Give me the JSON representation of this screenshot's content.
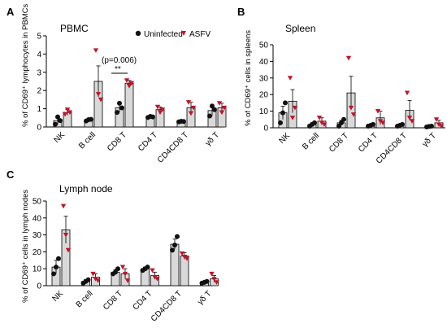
{
  "colors": {
    "uninfected": "#111111",
    "asfv": "#c0142a",
    "bar_fill": "#d9d9d9",
    "axis": "#000000"
  },
  "legend": {
    "uninfected_label": "Uninfected",
    "asfv_label": "ASFV",
    "placement": "top-right of panel A"
  },
  "chart_data": [
    {
      "panel": "A",
      "type": "bar",
      "title": "PBMC",
      "ylabel": "% of CD69⁺ lymphocytes in PBMCs",
      "xlabel": "",
      "ylim": [
        0,
        5
      ],
      "yticks": [
        0,
        1,
        2,
        3,
        4,
        5
      ],
      "grid": false,
      "categories": [
        "NK",
        "B cell",
        "CD8 T",
        "CD4 T",
        "CD4CD8 T",
        "γδ T"
      ],
      "series": [
        {
          "name": "Uninfected",
          "values": [
            0.35,
            0.38,
            1.05,
            0.55,
            0.3,
            0.9
          ],
          "errors": [
            0.2,
            0.05,
            0.25,
            0.05,
            0.03,
            0.3
          ],
          "points": [
            [
              0.15,
              0.55,
              0.35
            ],
            [
              0.33,
              0.4,
              0.42
            ],
            [
              0.8,
              1.3,
              1.05
            ],
            [
              0.52,
              0.58,
              0.55
            ],
            [
              0.28,
              0.31,
              0.3
            ],
            [
              0.6,
              1.15,
              0.95
            ]
          ]
        },
        {
          "name": "ASFV",
          "values": [
            0.8,
            2.5,
            2.4,
            0.95,
            1.05,
            1.05
          ],
          "errors": [
            0.15,
            0.85,
            0.15,
            0.15,
            0.3,
            0.25
          ],
          "points": [
            [
              0.7,
              0.95,
              0.8
            ],
            [
              4.2,
              1.8,
              1.5
            ],
            [
              2.55,
              2.25,
              2.4
            ],
            [
              1.1,
              0.8,
              0.95
            ],
            [
              1.35,
              0.75,
              1.05
            ],
            [
              1.3,
              0.8,
              1.05
            ]
          ]
        }
      ],
      "annotation": {
        "pvalue": "(p=0.006)",
        "stars": "**",
        "category_index": 2
      }
    },
    {
      "panel": "B",
      "type": "bar",
      "title": "Spleen",
      "ylabel": "% of CD69⁺ cells in spleens",
      "xlabel": "",
      "ylim": [
        0,
        50
      ],
      "yticks": [
        0,
        10,
        20,
        30,
        40,
        50
      ],
      "grid": false,
      "categories": [
        "NK",
        "B cell",
        "CD8 T",
        "CD4 T",
        "CD4CD8 T",
        "γδ T"
      ],
      "series": [
        {
          "name": "Uninfected",
          "values": [
            9,
            2,
            3,
            1.5,
            1.5,
            0.8
          ],
          "errors": [
            4,
            1,
            1.5,
            0.5,
            0.5,
            0.3
          ],
          "points": [
            [
              3,
              9,
              15
            ],
            [
              1,
              2,
              3
            ],
            [
              1,
              3,
              5
            ],
            [
              1,
              1.5,
              2
            ],
            [
              1,
              1.5,
              2
            ],
            [
              0.5,
              0.8,
              1
            ]
          ]
        },
        {
          "name": "ASFV",
          "values": [
            16,
            4,
            21,
            6,
            10.5,
            3
          ],
          "errors": [
            7,
            2,
            10,
            4,
            6,
            1.5
          ],
          "points": [
            [
              30,
              6,
              12
            ],
            [
              6,
              3,
              2
            ],
            [
              42,
              12,
              8
            ],
            [
              10,
              4,
              3
            ],
            [
              21,
              6,
              4
            ],
            [
              5,
              2,
              1
            ]
          ]
        }
      ]
    },
    {
      "panel": "C",
      "type": "bar",
      "title": "Lymph node",
      "ylabel": "% of CD69⁺ cells in lymph nodes",
      "xlabel": "",
      "ylim": [
        0,
        50
      ],
      "yticks": [
        0,
        10,
        20,
        30,
        40,
        50
      ],
      "grid": false,
      "categories": [
        "NK",
        "B cell",
        "CD8 T",
        "CD4 T",
        "CD4CD8 T",
        "γδ T"
      ],
      "series": [
        {
          "name": "Uninfected",
          "values": [
            11,
            2.5,
            8,
            10,
            24.5,
            2
          ],
          "errors": [
            4,
            1,
            1.5,
            1,
            3,
            0.5
          ],
          "points": [
            [
              7,
              11,
              16
            ],
            [
              1.5,
              2.5,
              3.5
            ],
            [
              7,
              8,
              10
            ],
            [
              9,
              10,
              11
            ],
            [
              21,
              24,
              29
            ],
            [
              1.5,
              2,
              2.5
            ]
          ]
        },
        {
          "name": "ASFV",
          "values": [
            33,
            5,
            7,
            6,
            17.5,
            4
          ],
          "errors": [
            8,
            2,
            3,
            2,
            2,
            2
          ],
          "points": [
            [
              47,
              30,
              21
            ],
            [
              7,
              4,
              3
            ],
            [
              11,
              7,
              3
            ],
            [
              9,
              5,
              4
            ],
            [
              19,
              17,
              16
            ],
            [
              7,
              4,
              2
            ]
          ]
        }
      ]
    }
  ],
  "panel_labels": [
    "A",
    "B",
    "C"
  ]
}
